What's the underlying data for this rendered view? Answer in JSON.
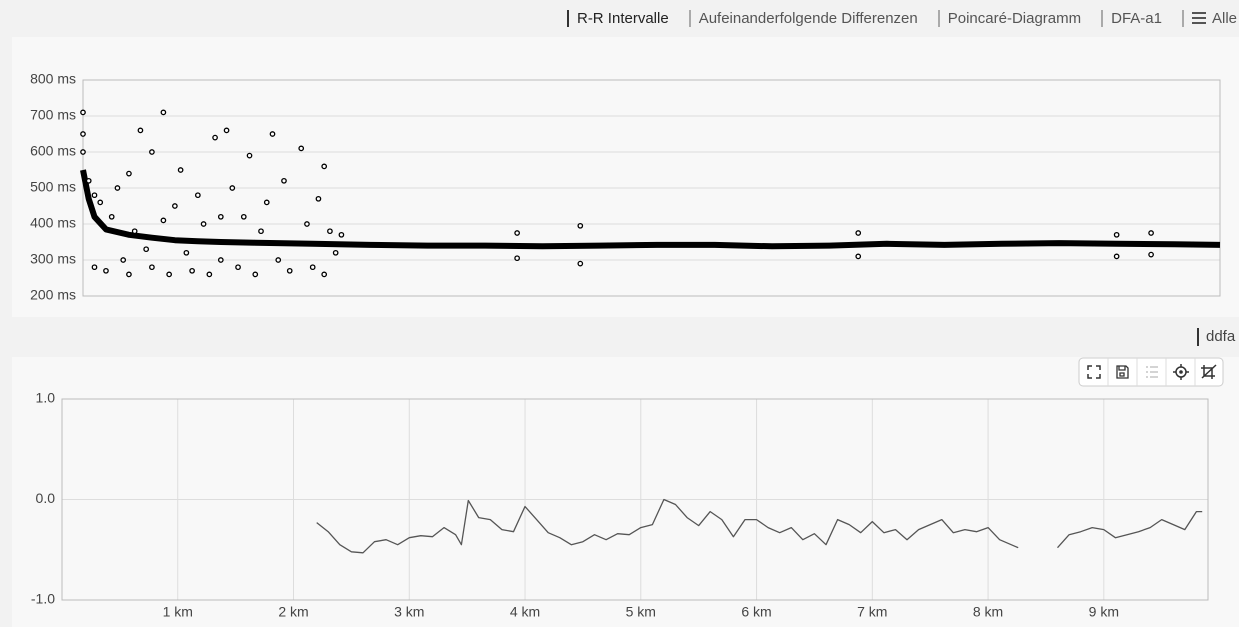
{
  "tabs": [
    "R-R Intervalle",
    "Aufeinanderfolgende Differenzen",
    "Poincaré-Diagramm",
    "DFA-a1",
    "Alle"
  ],
  "secondary_tabs": [
    "ddfa"
  ],
  "chart_data": [
    {
      "type": "scatter",
      "xlim": [
        0,
        9.9
      ],
      "ylim": [
        200,
        800
      ],
      "yticks": [
        {
          "value": 200,
          "label": "200 ms"
        },
        {
          "value": 300,
          "label": "300 ms"
        },
        {
          "value": 400,
          "label": "400 ms"
        },
        {
          "value": 500,
          "label": "500 ms"
        },
        {
          "value": 600,
          "label": "600 ms"
        },
        {
          "value": 700,
          "label": "700 ms"
        },
        {
          "value": 800,
          "label": "800 ms"
        }
      ],
      "grid": true,
      "series": [
        {
          "color": "#000000",
          "mode": "lines",
          "x": [
            0,
            0.05,
            0.1,
            0.2,
            0.4,
            0.6,
            0.8,
            1.0,
            1.2,
            1.5,
            2.0,
            2.5,
            3.0,
            3.5,
            4.0,
            4.5,
            5.0,
            5.5,
            6.0,
            6.5,
            7.0,
            7.5,
            8.0,
            8.5,
            9.0,
            9.5,
            9.9
          ],
          "values": [
            550,
            470,
            420,
            385,
            370,
            362,
            355,
            352,
            350,
            348,
            345,
            342,
            340,
            340,
            338,
            340,
            342,
            342,
            338,
            340,
            345,
            342,
            345,
            347,
            345,
            344,
            342
          ]
        },
        {
          "color": "#000000",
          "mode": "markers",
          "x": [
            0,
            0,
            0,
            0.05,
            0.1,
            0.1,
            0.15,
            0.2,
            0.25,
            0.3,
            0.35,
            0.4,
            0.4,
            0.45,
            0.5,
            0.55,
            0.6,
            0.6,
            0.7,
            0.7,
            0.75,
            0.8,
            0.85,
            0.9,
            0.95,
            1.0,
            1.05,
            1.1,
            1.15,
            1.2,
            1.2,
            1.25,
            1.3,
            1.35,
            1.4,
            1.45,
            1.5,
            1.55,
            1.6,
            1.65,
            1.7,
            1.75,
            1.8,
            1.9,
            1.95,
            2.0,
            2.05,
            2.1,
            2.1,
            2.15,
            2.2,
            2.25,
            3.78,
            3.78,
            4.33,
            4.33,
            6.75,
            6.75,
            9.0,
            9.0,
            9.3,
            9.3
          ],
          "values": [
            710,
            650,
            600,
            520,
            480,
            280,
            460,
            270,
            420,
            500,
            300,
            260,
            540,
            380,
            660,
            330,
            600,
            280,
            410,
            710,
            260,
            450,
            550,
            320,
            270,
            480,
            400,
            260,
            640,
            420,
            300,
            660,
            500,
            280,
            420,
            590,
            260,
            380,
            460,
            650,
            300,
            520,
            270,
            610,
            400,
            280,
            470,
            560,
            260,
            380,
            320,
            370,
            375,
            305,
            395,
            290,
            375,
            310,
            370,
            310,
            375,
            315
          ]
        }
      ]
    },
    {
      "type": "line",
      "xlim": [
        0,
        9.9
      ],
      "ylim": [
        -1,
        1
      ],
      "yticks": [
        {
          "value": -1,
          "label": "-1.0"
        },
        {
          "value": 0,
          "label": "0.0"
        },
        {
          "value": 1,
          "label": "1.0"
        }
      ],
      "xticks": [
        {
          "value": 1,
          "label": "1 km"
        },
        {
          "value": 2,
          "label": "2 km"
        },
        {
          "value": 3,
          "label": "3 km"
        },
        {
          "value": 4,
          "label": "4 km"
        },
        {
          "value": 5,
          "label": "5 km"
        },
        {
          "value": 6,
          "label": "6 km"
        },
        {
          "value": 7,
          "label": "7 km"
        },
        {
          "value": 8,
          "label": "8 km"
        },
        {
          "value": 9,
          "label": "9 km"
        }
      ],
      "grid": true,
      "color": "#555555",
      "x": [
        2.2,
        2.3,
        2.4,
        2.5,
        2.6,
        2.7,
        2.8,
        2.9,
        3.0,
        3.1,
        3.2,
        3.3,
        3.4,
        3.45,
        3.51,
        3.6,
        3.7,
        3.8,
        3.9,
        4.0,
        4.1,
        4.2,
        4.3,
        4.4,
        4.5,
        4.6,
        4.7,
        4.8,
        4.9,
        5.0,
        5.1,
        5.2,
        5.3,
        5.4,
        5.5,
        5.6,
        5.7,
        5.8,
        5.9,
        6.0,
        6.1,
        6.2,
        6.3,
        6.4,
        6.5,
        6.6,
        6.7,
        6.8,
        6.9,
        7.0,
        7.1,
        7.2,
        7.3,
        7.4,
        7.5,
        7.6,
        7.7,
        7.8,
        7.9,
        8.0,
        8.1,
        8.2,
        8.26,
        8.4,
        8.6,
        8.7,
        8.8,
        8.9,
        9.0,
        9.1,
        9.2,
        9.3,
        9.4,
        9.5,
        9.6,
        9.7,
        9.8,
        9.85
      ],
      "values": [
        -0.23,
        -0.32,
        -0.45,
        -0.52,
        -0.53,
        -0.42,
        -0.4,
        -0.45,
        -0.38,
        -0.36,
        -0.37,
        -0.28,
        -0.35,
        -0.45,
        -0.01,
        -0.18,
        -0.2,
        -0.3,
        -0.32,
        -0.07,
        -0.2,
        -0.33,
        -0.38,
        -0.45,
        -0.42,
        -0.35,
        -0.4,
        -0.34,
        -0.35,
        -0.28,
        -0.25,
        0.0,
        -0.05,
        -0.18,
        -0.26,
        -0.12,
        -0.2,
        -0.37,
        -0.2,
        -0.2,
        -0.28,
        -0.33,
        -0.28,
        -0.4,
        -0.34,
        -0.45,
        -0.2,
        -0.25,
        -0.33,
        -0.22,
        -0.33,
        -0.3,
        -0.4,
        -0.3,
        -0.25,
        -0.2,
        -0.33,
        -0.3,
        -0.32,
        -0.28,
        -0.4,
        -0.45,
        -0.48,
        null,
        -0.48,
        -0.35,
        -0.32,
        -0.28,
        -0.3,
        -0.38,
        -0.35,
        -0.32,
        -0.28,
        -0.2,
        -0.25,
        -0.3,
        -0.12,
        -0.12
      ]
    }
  ]
}
